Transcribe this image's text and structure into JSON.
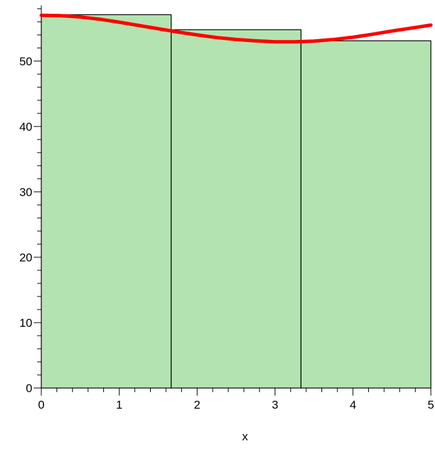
{
  "chart_data": {
    "type": "bar",
    "xlabel": "x",
    "ylabel": "",
    "xlim": [
      0,
      5
    ],
    "ylim": [
      0,
      58.5
    ],
    "x_ticks": [
      "0",
      "1",
      "2",
      "3",
      "4",
      "5"
    ],
    "y_ticks": [
      "0",
      "10",
      "20",
      "30",
      "40",
      "50"
    ],
    "bars": [
      {
        "x_start": 0,
        "x_end": 1.6667,
        "value": 57.1
      },
      {
        "x_start": 1.6667,
        "x_end": 3.3333,
        "value": 54.8
      },
      {
        "x_start": 3.3333,
        "x_end": 5,
        "value": 53.1
      }
    ],
    "curve": {
      "x": [
        0,
        0.25,
        0.5,
        0.75,
        1,
        1.25,
        1.5,
        1.75,
        2,
        2.25,
        2.5,
        2.75,
        3,
        3.25,
        3.5,
        3.75,
        4,
        4.25,
        4.5,
        4.75,
        5
      ],
      "y": [
        57.0,
        56.95,
        56.75,
        56.4,
        55.95,
        55.45,
        54.95,
        54.45,
        54.0,
        53.6,
        53.3,
        53.1,
        52.95,
        52.95,
        53.05,
        53.3,
        53.65,
        54.1,
        54.6,
        55.05,
        55.5
      ]
    },
    "colors": {
      "bar_fill": "#b3e3b0",
      "bar_stroke": "#000000",
      "curve": "#ff0000"
    }
  }
}
